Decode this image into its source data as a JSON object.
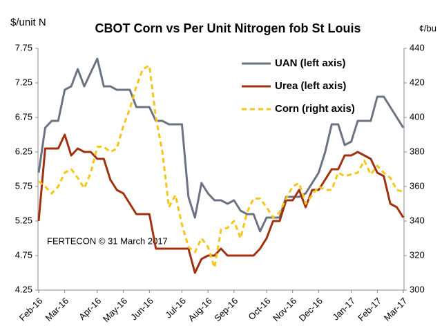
{
  "chart_data": {
    "type": "line",
    "title": "CBOT Corn vs Per Unit Nitrogen fob St Louis",
    "y_label": "$/unit N",
    "y2_label": "¢/bu",
    "annotation": "FERTECON © 31 March 2017",
    "categories": [
      "Feb-16",
      null,
      null,
      null,
      "Mar-16",
      null,
      null,
      null,
      null,
      "Apr-16",
      null,
      null,
      null,
      "May-16",
      null,
      null,
      null,
      "Jun-16",
      null,
      null,
      null,
      null,
      "Jul-16",
      null,
      null,
      null,
      "Aug-16",
      null,
      null,
      null,
      "Sep-16",
      null,
      null,
      null,
      null,
      "Oct-16",
      null,
      null,
      null,
      "Nov-16",
      null,
      null,
      null,
      "Dec-16",
      null,
      null,
      null,
      null,
      "Jan-17",
      null,
      null,
      null,
      "Feb-17",
      null,
      null,
      null,
      "Mar-17"
    ],
    "series": [
      {
        "name": "UAN (left axis)",
        "color": "#6b7383",
        "dash": false,
        "axis": "y",
        "values": [
          5.95,
          6.6,
          6.7,
          6.7,
          7.15,
          7.2,
          7.45,
          7.2,
          7.4,
          7.6,
          7.2,
          7.2,
          7.15,
          7.15,
          7.15,
          6.9,
          6.9,
          6.9,
          6.7,
          6.7,
          6.65,
          6.65,
          6.65,
          5.6,
          5.3,
          5.8,
          5.65,
          5.55,
          5.55,
          5.5,
          5.55,
          5.4,
          5.35,
          5.35,
          5.1,
          5.3,
          5.3,
          5.3,
          5.6,
          5.6,
          5.6,
          5.65,
          5.8,
          5.95,
          6.25,
          6.65,
          6.65,
          6.35,
          6.4,
          6.7,
          6.7,
          6.7,
          7.05,
          7.05,
          6.9,
          6.75,
          6.6
        ]
      },
      {
        "name": "Urea (left axis)",
        "color": "#a0300f",
        "dash": false,
        "axis": "y",
        "values": [
          5.25,
          6.3,
          6.3,
          6.3,
          6.5,
          6.2,
          6.3,
          6.25,
          6.25,
          6.15,
          6.15,
          5.85,
          5.7,
          5.65,
          5.5,
          5.35,
          5.35,
          5.35,
          4.85,
          4.85,
          4.85,
          4.85,
          4.85,
          4.85,
          4.5,
          4.7,
          4.75,
          4.75,
          4.85,
          4.75,
          4.75,
          4.75,
          4.75,
          4.75,
          4.85,
          5.0,
          5.25,
          5.25,
          5.55,
          5.55,
          5.7,
          5.45,
          5.7,
          5.7,
          5.85,
          6.0,
          6.0,
          6.2,
          6.2,
          6.25,
          6.2,
          6.15,
          5.95,
          5.9,
          5.5,
          5.45,
          5.3
        ]
      },
      {
        "name": "Corn (right axis)",
        "color": "#f5c518",
        "dash": true,
        "axis": "y2",
        "values": [
          363,
          360,
          356,
          360,
          368,
          370,
          365,
          359,
          368,
          383,
          383,
          380,
          382,
          395,
          405,
          418,
          428,
          430,
          400,
          380,
          348,
          355,
          338,
          325,
          322,
          330,
          325,
          313,
          335,
          336,
          340,
          330,
          345,
          353,
          353,
          348,
          342,
          345,
          353,
          360,
          362,
          350,
          355,
          360,
          358,
          358,
          368,
          366,
          367,
          368,
          375,
          367,
          372,
          368,
          365,
          358,
          357
        ]
      }
    ],
    "ylim": [
      4.25,
      7.75
    ],
    "yticks": [
      4.25,
      4.75,
      5.25,
      5.75,
      6.25,
      6.75,
      7.25,
      7.75
    ],
    "y2lim": [
      300,
      440
    ],
    "y2ticks": [
      300,
      320,
      340,
      360,
      380,
      400,
      420,
      440
    ],
    "grid": false,
    "legend": "upper right"
  }
}
